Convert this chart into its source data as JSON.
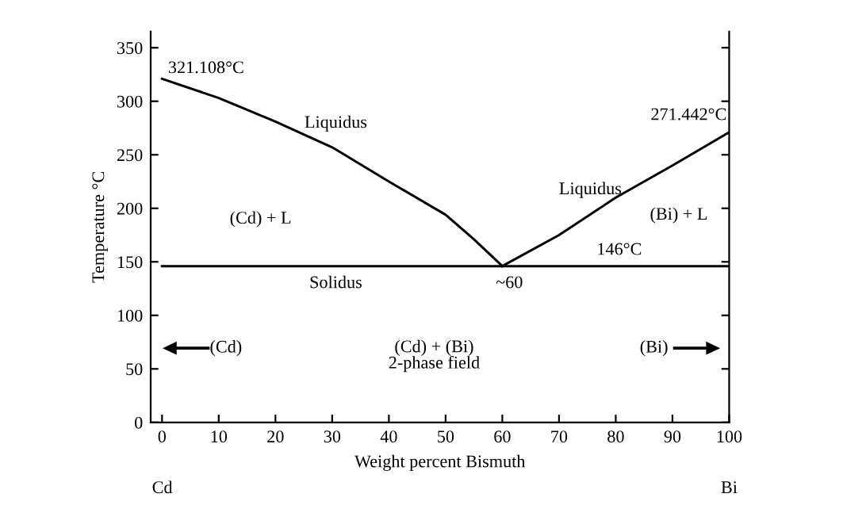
{
  "chart_data": {
    "type": "line",
    "xlabel": "Weight percent Bismuth",
    "ylabel": "Temperature °C",
    "series": [
      {
        "color": "#000000",
        "x": [
          0,
          10,
          20,
          30,
          40,
          50,
          55,
          60
        ],
        "values": [
          321,
          303,
          281,
          257,
          225,
          194,
          171,
          146
        ]
      },
      {
        "color": "#000000",
        "x": [
          60,
          70,
          80,
          90,
          100
        ],
        "values": [
          146,
          175,
          210,
          240,
          271
        ]
      },
      {
        "color": "#000000",
        "x": [
          0,
          100
        ],
        "values": [
          146,
          146
        ]
      }
    ],
    "xlim": [
      -2,
      100
    ],
    "ylim": [
      0,
      365
    ],
    "xticks": [
      0,
      10,
      20,
      30,
      40,
      50,
      60,
      70,
      80,
      90,
      100
    ],
    "yticks": [
      0,
      50,
      100,
      150,
      200,
      250,
      300,
      350
    ],
    "grid": false,
    "legend": false,
    "marker": "none",
    "line_style": "solid",
    "annotations": [
      "321.108°C",
      "Liquidus",
      "(Cd) + L",
      "Solidus",
      "(Cd)",
      "(Cd) + (Bi)\n2-phase field",
      "Liquidus",
      "(Bi) + L",
      "146°C",
      "~60",
      "271.442°C",
      "(Bi)",
      "Cd",
      "Bi"
    ]
  }
}
